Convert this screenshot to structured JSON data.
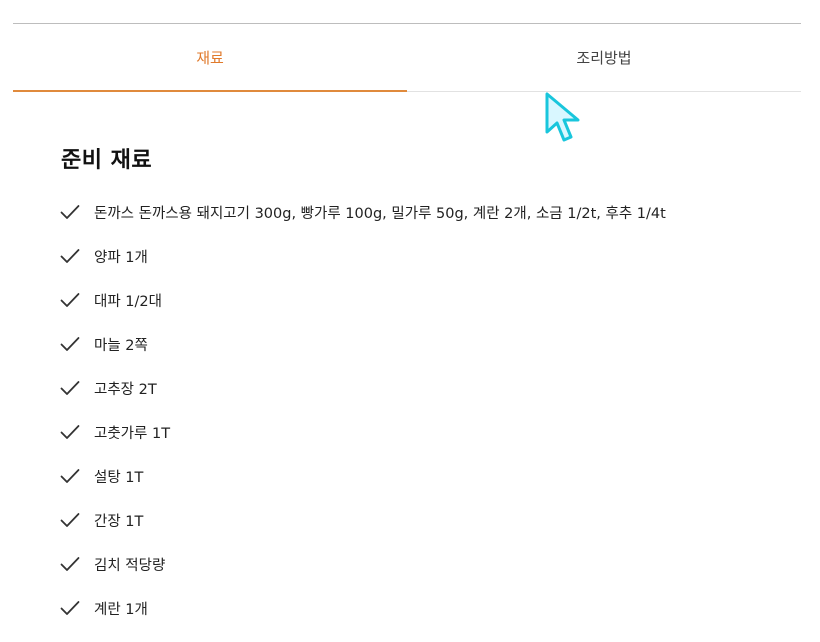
{
  "tabs": [
    {
      "label": "재료",
      "active": true
    },
    {
      "label": "조리방법",
      "active": false
    }
  ],
  "section": {
    "title": "준비 재료"
  },
  "ingredients": [
    "돈까스 돈까스용 돼지고기 300g, 빵가루 100g, 밀가루 50g, 계란 2개, 소금 1/2t, 후추 1/4t",
    "양파 1개",
    "대파 1/2대",
    "마늘 2쪽",
    "고추장 2T",
    "고춧가루 1T",
    "설탕 1T",
    "간장 1T",
    "김치 적당량",
    "계란 1개"
  ],
  "icons": {
    "check": "check-icon",
    "cursor": "mouse-pointer-icon"
  },
  "colors": {
    "accent": "#e07a2c",
    "cursor_fill": "#d9f7ff",
    "cursor_stroke": "#19c6dc"
  }
}
